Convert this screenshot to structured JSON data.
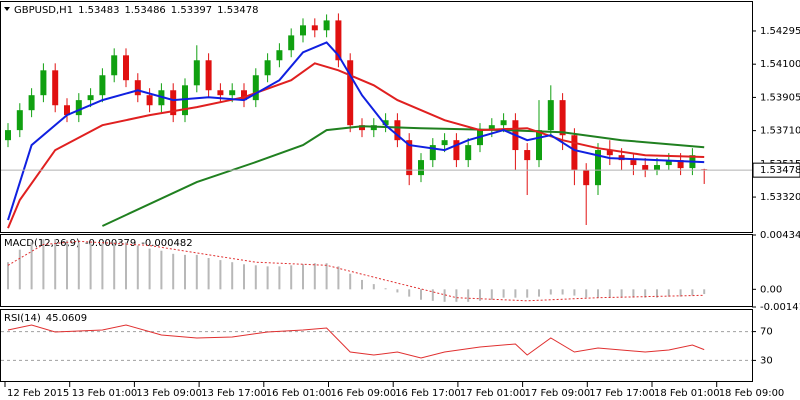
{
  "chart_data": [
    {
      "type": "candlestick",
      "title": "GBPUSD,H1",
      "up_color": "#10a010",
      "down_color": "#e01010",
      "open": [
        1.53654,
        1.53713,
        1.5383,
        1.53918,
        1.54064,
        1.53859,
        1.53801,
        1.53889,
        1.53918,
        1.54035,
        1.54152,
        1.54006,
        1.53918,
        1.53859,
        1.53947,
        1.53801,
        1.53976,
        1.54123,
        1.53947,
        1.53918,
        1.53947,
        1.53889,
        1.54035,
        1.54123,
        1.54182,
        1.54269,
        1.54328,
        1.54299,
        1.54357,
        1.54123,
        1.53742,
        1.53713,
        1.53742,
        1.53771,
        1.53654,
        1.53449,
        1.53537,
        1.53625,
        1.53654,
        1.53537,
        1.53625,
        1.53713,
        1.53742,
        1.53771,
        1.53596,
        1.53537,
        1.53713,
        1.53889,
        1.53683,
        1.53478,
        1.5339,
        1.53596,
        1.53566,
        1.53537,
        1.53508,
        1.53478,
        1.53508,
        1.53537,
        1.5349,
        1.53483
      ],
      "high": [
        1.53754,
        1.53871,
        1.53959,
        1.54105,
        1.54105,
        1.539,
        1.5393,
        1.53959,
        1.54076,
        1.54193,
        1.54193,
        1.54047,
        1.53959,
        1.53988,
        1.53988,
        1.54017,
        1.54211,
        1.54164,
        1.53988,
        1.53988,
        1.53988,
        1.54076,
        1.54164,
        1.54223,
        1.5431,
        1.54369,
        1.54369,
        1.54392,
        1.54398,
        1.54164,
        1.53783,
        1.53783,
        1.53812,
        1.53812,
        1.53695,
        1.53578,
        1.53666,
        1.53695,
        1.53695,
        1.53666,
        1.53754,
        1.53783,
        1.53812,
        1.53812,
        1.53637,
        1.53889,
        1.53976,
        1.5393,
        1.53724,
        1.53519,
        1.53637,
        1.53654,
        1.53607,
        1.53578,
        1.53549,
        1.53549,
        1.53578,
        1.53578,
        1.53607,
        1.53486
      ],
      "low": [
        1.53613,
        1.53672,
        1.53789,
        1.53877,
        1.53818,
        1.5376,
        1.5376,
        1.53848,
        1.53877,
        1.53994,
        1.53965,
        1.53877,
        1.53818,
        1.53818,
        1.5376,
        1.5376,
        1.53935,
        1.53906,
        1.53877,
        1.53877,
        1.53848,
        1.53848,
        1.53994,
        1.54082,
        1.54141,
        1.54228,
        1.54258,
        1.54258,
        1.54082,
        1.53701,
        1.53672,
        1.53672,
        1.53701,
        1.53613,
        1.5339,
        1.53408,
        1.53496,
        1.53584,
        1.53496,
        1.53496,
        1.53584,
        1.53672,
        1.53701,
        1.53478,
        1.53332,
        1.53496,
        1.53672,
        1.53596,
        1.5339,
        1.53156,
        1.53332,
        1.53508,
        1.53478,
        1.53449,
        1.53437,
        1.53449,
        1.53478,
        1.53449,
        1.53449,
        1.53397
      ],
      "close": [
        1.53713,
        1.5383,
        1.53918,
        1.54064,
        1.53859,
        1.53801,
        1.53889,
        1.53918,
        1.54035,
        1.54152,
        1.54006,
        1.53918,
        1.53859,
        1.53947,
        1.53801,
        1.53976,
        1.54123,
        1.53947,
        1.53918,
        1.53947,
        1.53889,
        1.54035,
        1.54123,
        1.54182,
        1.54269,
        1.54328,
        1.54299,
        1.54357,
        1.54123,
        1.53742,
        1.53713,
        1.53742,
        1.53771,
        1.53654,
        1.53449,
        1.53537,
        1.53625,
        1.53654,
        1.53537,
        1.53625,
        1.53713,
        1.53742,
        1.53771,
        1.53596,
        1.53537,
        1.53713,
        1.53889,
        1.53683,
        1.53478,
        1.5339,
        1.53596,
        1.53566,
        1.53537,
        1.53508,
        1.53478,
        1.53508,
        1.53537,
        1.5349,
        1.53566,
        1.53478
      ],
      "series": [
        {
          "color": "#208020",
          "x": [
            8,
            10,
            16,
            21,
            25,
            27,
            30,
            35,
            42,
            47,
            52,
            59
          ],
          "values": [
            1.5315,
            1.53215,
            1.53408,
            1.53525,
            1.53625,
            1.53713,
            1.53736,
            1.53724,
            1.53713,
            1.53701,
            1.53654,
            1.53613
          ]
        },
        {
          "color": "#e02020",
          "x": [
            0,
            1,
            4,
            8,
            12,
            16,
            20,
            24,
            26,
            28,
            31,
            33,
            37,
            40,
            44,
            47,
            50,
            54,
            59
          ],
          "values": [
            1.53138,
            1.53303,
            1.53596,
            1.53742,
            1.53801,
            1.53848,
            1.53906,
            1.54006,
            1.54105,
            1.54064,
            1.53976,
            1.53889,
            1.53771,
            1.53713,
            1.53724,
            1.53654,
            1.53607,
            1.53566,
            1.53555
          ]
        },
        {
          "color": "#1020e0",
          "x": [
            0,
            2,
            5,
            8,
            11,
            14,
            17,
            20,
            23,
            25,
            27,
            28,
            30,
            32,
            34,
            37,
            39,
            42,
            44,
            46,
            48,
            51,
            55,
            59
          ],
          "values": [
            1.53185,
            1.53625,
            1.53801,
            1.53889,
            1.53947,
            1.53889,
            1.53906,
            1.53889,
            1.54006,
            1.5417,
            1.54228,
            1.54152,
            1.53918,
            1.53742,
            1.53625,
            1.53596,
            1.53654,
            1.53713,
            1.53654,
            1.53683,
            1.53596,
            1.53549,
            1.53537,
            1.53525
          ]
        }
      ],
      "ylim": [
        1.53115,
        1.54465
      ],
      "yticks": [
        1.54295,
        {
          "value": 1.541,
          "label": "1.54100"
        },
        1.53905,
        {
          "value": 1.5371,
          "label": "1.53710"
        },
        1.53515,
        {
          "value": 1.5332,
          "label": "1.53320"
        }
      ]
    },
    {
      "type": "macd",
      "title": "MACD(12,26,9)",
      "series": [
        {
          "color": "#b8b8b8",
          "values": [
            0.002169,
            0.00317,
            0.003754,
            0.004005,
            0.004005,
            0.003921,
            0.003754,
            0.003671,
            0.003671,
            0.003754,
            0.003754,
            0.003504,
            0.003254,
            0.003087,
            0.002837,
            0.002753,
            0.002753,
            0.002503,
            0.002336,
            0.002169,
            0.002002,
            0.001919,
            0.001835,
            0.001835,
            0.001919,
            0.002002,
            0.002086,
            0.002086,
            0.001835,
            0.001251,
            0.000751,
            0.000417,
            8.3e-05,
            -0.00025,
            -0.000584,
            -0.000834,
            -0.000918,
            -0.001001,
            -0.001001,
            -0.001001,
            -0.000918,
            -0.000834,
            -0.000667,
            -0.000667,
            -0.000667,
            -0.000584,
            -0.000417,
            -0.000417,
            -0.000501,
            -0.000667,
            -0.000667,
            -0.000667,
            -0.000667,
            -0.000667,
            -0.000667,
            -0.000667,
            -0.000584,
            -0.000584,
            -0.000501,
            -0.000379
          ]
        },
        {
          "color": "#e03030",
          "x": [
            0,
            3,
            6,
            12,
            21,
            27,
            33,
            38,
            44,
            50,
            59
          ],
          "values": [
            0.001919,
            0.003587,
            0.003838,
            0.003504,
            0.002169,
            0.001919,
            0.000501,
            -0.000667,
            -0.000918,
            -0.000667,
            -0.000482
          ]
        }
      ],
      "ylim": [
        -0.001414,
        0.004343
      ],
      "yticks": [
        0.004343,
        {
          "value": 0,
          "label": "0.00"
        },
        -0.001414
      ]
    },
    {
      "type": "line",
      "title": "RSI(14)",
      "series": [
        {
          "color": "#e03030",
          "x": [
            0,
            2,
            4,
            8,
            10,
            13,
            16,
            19,
            22,
            25,
            27,
            29,
            31,
            33,
            35,
            37,
            40,
            43,
            44,
            46,
            48,
            50,
            54,
            56,
            58,
            59
          ],
          "values": [
            72.2,
            79.2,
            69.4,
            72.2,
            79.2,
            65.3,
            61.1,
            62.5,
            69.4,
            72.2,
            75.0,
            41.7,
            37.5,
            41.7,
            33.3,
            41.7,
            48.6,
            52.8,
            37.5,
            61.1,
            41.7,
            47.2,
            41.7,
            44.4,
            51.4,
            45.0609
          ]
        }
      ],
      "ylim": [
        0,
        100
      ],
      "yticks": [
        70,
        30
      ],
      "grid": true,
      "x_labels": [
        "12 Feb 2015",
        "13 Feb 01:00",
        "13 Feb 09:00",
        "13 Feb 17:00",
        "16 Feb 01:00",
        "16 Feb 09:00",
        "16 Feb 17:00",
        "17 Feb 01:00",
        "17 Feb 09:00",
        "17 Feb 17:00",
        "18 Feb 01:00",
        "18 Feb 09:00"
      ]
    }
  ]
}
